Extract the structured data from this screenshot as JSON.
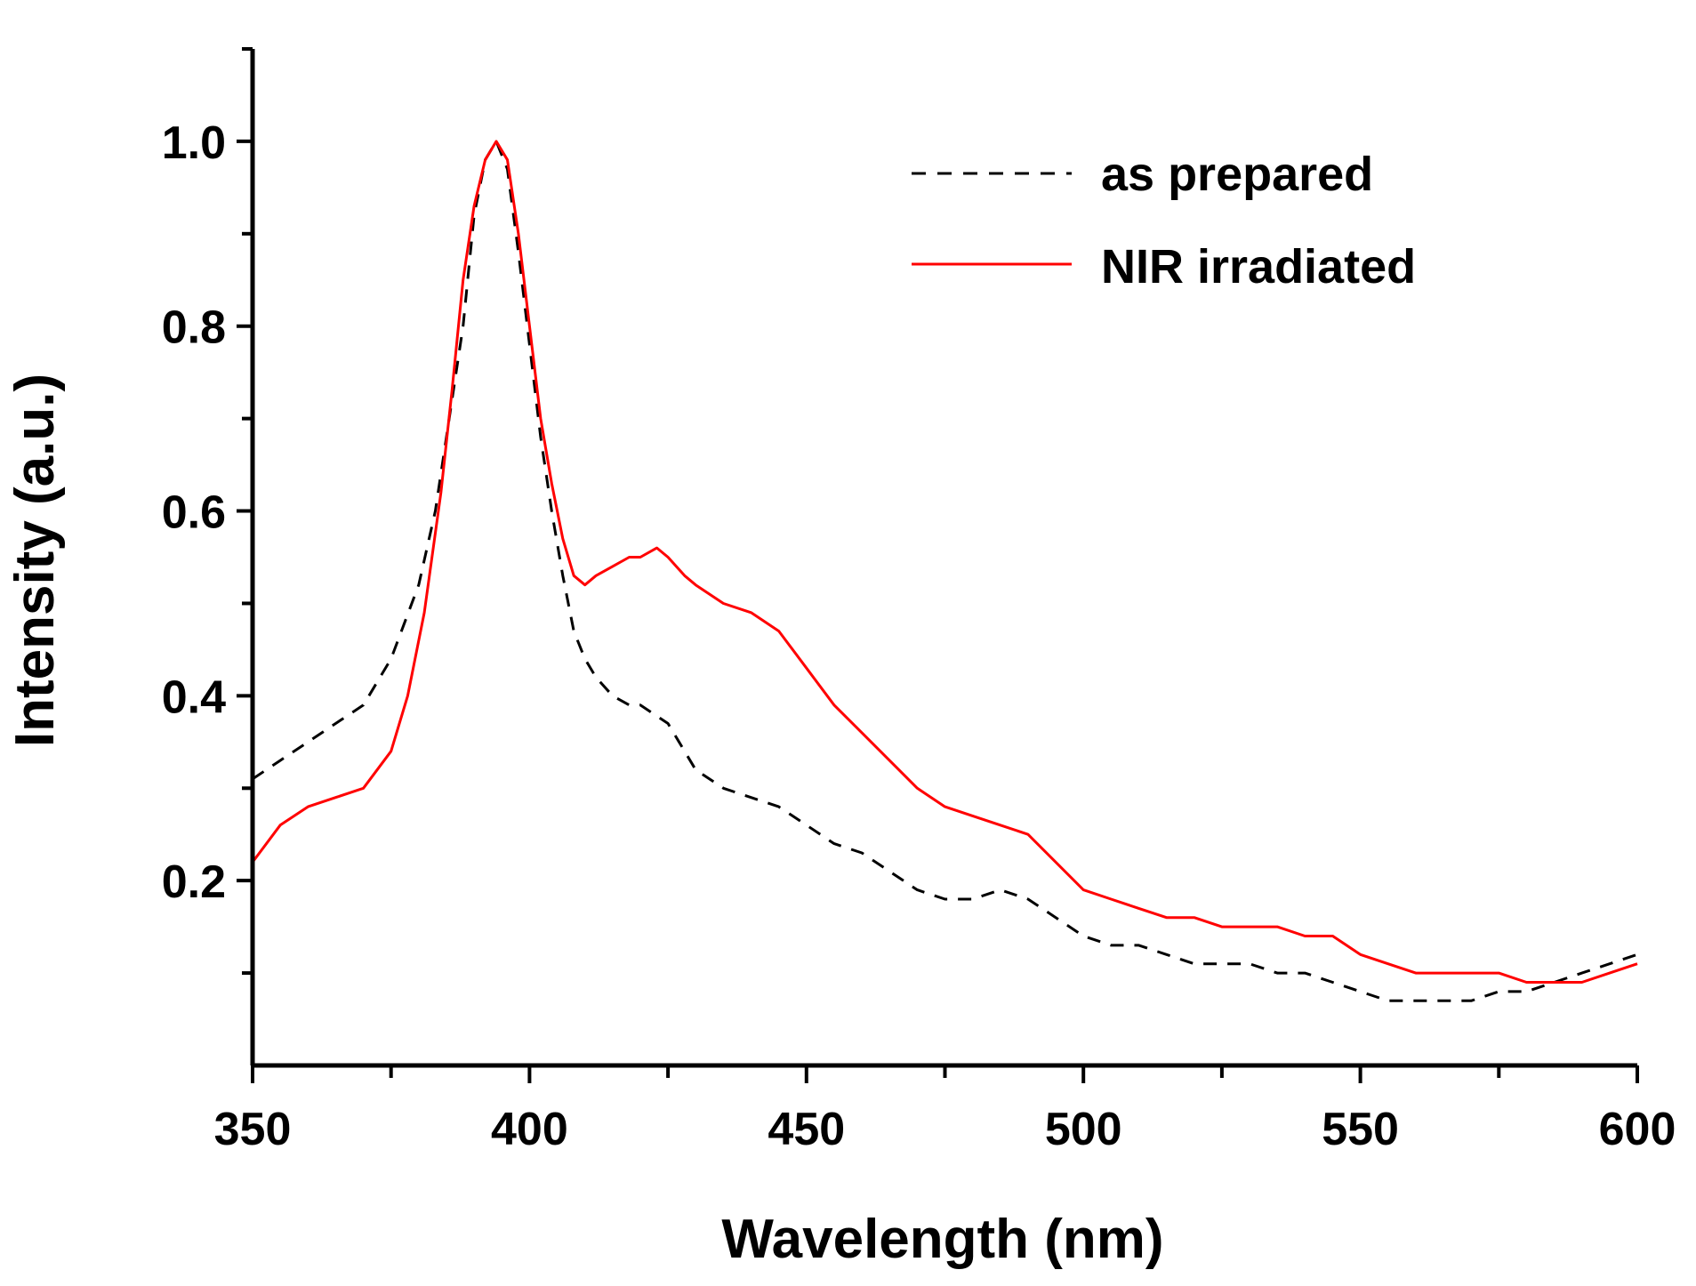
{
  "chart_data": {
    "type": "line",
    "title": "",
    "xlabel": "Wavelength (nm)",
    "ylabel": "Intensity (a.u.)",
    "xlim": [
      350,
      600
    ],
    "ylim": [
      0.0,
      1.1
    ],
    "x_ticks": [
      350,
      400,
      450,
      500,
      550,
      600
    ],
    "x_tick_labels": [
      "350",
      "400",
      "450",
      "500",
      "550",
      "600"
    ],
    "y_ticks": [
      0.2,
      0.4,
      0.6,
      0.8,
      1.0
    ],
    "y_tick_labels": [
      "0.2",
      "0.4",
      "0.6",
      "0.8",
      "1.0"
    ],
    "x_minor_step": 25,
    "y_minor_step": 0.1,
    "grid": false,
    "legend_position": "top-right",
    "series": [
      {
        "name": "as prepared",
        "style": "dashed",
        "color": "#000000",
        "x": [
          350,
          355,
          360,
          365,
          370,
          375,
          380,
          383,
          386,
          388,
          390,
          392,
          394,
          396,
          398,
          400,
          402,
          404,
          406,
          408,
          410,
          412,
          415,
          418,
          420,
          425,
          430,
          435,
          440,
          445,
          450,
          455,
          460,
          465,
          470,
          475,
          480,
          485,
          490,
          495,
          500,
          505,
          510,
          515,
          520,
          525,
          530,
          535,
          540,
          545,
          550,
          555,
          560,
          565,
          570,
          575,
          580,
          585,
          590,
          595,
          600
        ],
        "values": [
          0.31,
          0.33,
          0.35,
          0.37,
          0.39,
          0.44,
          0.52,
          0.6,
          0.72,
          0.8,
          0.92,
          0.98,
          1.0,
          0.97,
          0.88,
          0.78,
          0.68,
          0.6,
          0.53,
          0.47,
          0.44,
          0.42,
          0.4,
          0.39,
          0.39,
          0.37,
          0.32,
          0.3,
          0.29,
          0.28,
          0.26,
          0.24,
          0.23,
          0.21,
          0.19,
          0.18,
          0.18,
          0.19,
          0.18,
          0.16,
          0.14,
          0.13,
          0.13,
          0.12,
          0.11,
          0.11,
          0.11,
          0.1,
          0.1,
          0.09,
          0.08,
          0.07,
          0.07,
          0.07,
          0.07,
          0.08,
          0.08,
          0.09,
          0.1,
          0.11,
          0.12
        ]
      },
      {
        "name": "NIR irradiated",
        "style": "solid",
        "color": "#ff0000",
        "x": [
          350,
          355,
          360,
          365,
          370,
          375,
          378,
          381,
          384,
          386,
          388,
          390,
          392,
          394,
          396,
          398,
          400,
          402,
          404,
          406,
          408,
          410,
          412,
          415,
          418,
          420,
          423,
          425,
          428,
          430,
          435,
          440,
          445,
          450,
          455,
          460,
          465,
          470,
          475,
          480,
          485,
          490,
          495,
          500,
          505,
          510,
          515,
          520,
          525,
          530,
          535,
          540,
          545,
          550,
          555,
          560,
          565,
          570,
          575,
          580,
          585,
          590,
          595,
          600
        ],
        "values": [
          0.22,
          0.26,
          0.28,
          0.29,
          0.3,
          0.34,
          0.4,
          0.49,
          0.62,
          0.73,
          0.85,
          0.93,
          0.98,
          1.0,
          0.98,
          0.9,
          0.8,
          0.7,
          0.63,
          0.57,
          0.53,
          0.52,
          0.53,
          0.54,
          0.55,
          0.55,
          0.56,
          0.55,
          0.53,
          0.52,
          0.5,
          0.49,
          0.47,
          0.43,
          0.39,
          0.36,
          0.33,
          0.3,
          0.28,
          0.27,
          0.26,
          0.25,
          0.22,
          0.19,
          0.18,
          0.17,
          0.16,
          0.16,
          0.15,
          0.15,
          0.15,
          0.14,
          0.14,
          0.12,
          0.11,
          0.1,
          0.1,
          0.1,
          0.1,
          0.09,
          0.09,
          0.09,
          0.1,
          0.11
        ]
      }
    ]
  }
}
